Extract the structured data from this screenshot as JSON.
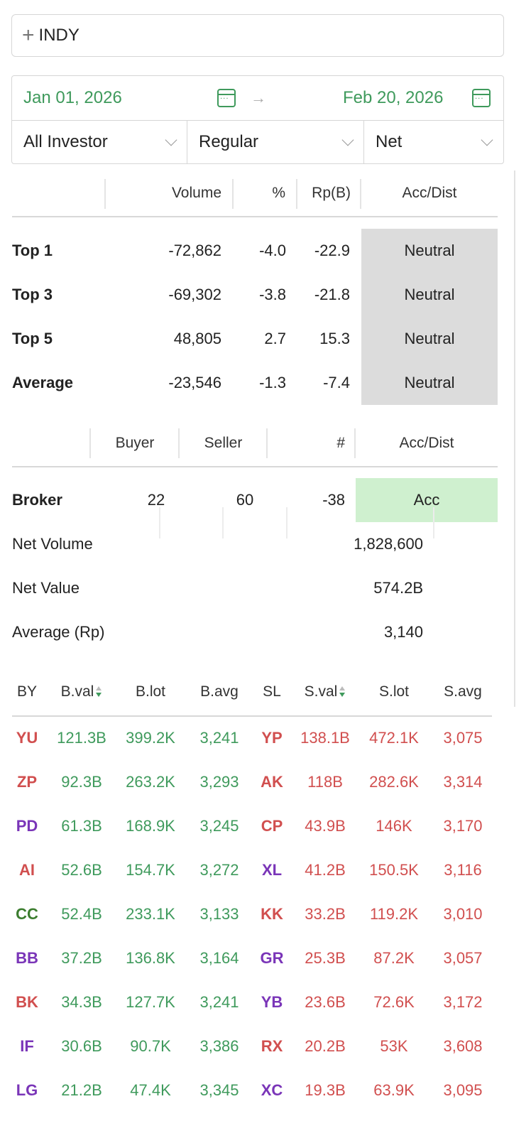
{
  "search": {
    "value": "INDY"
  },
  "dates": {
    "start": "Jan 01, 2026",
    "end": "Feb 20, 2026"
  },
  "filters": {
    "investor": "All Investor",
    "market": "Regular",
    "mode": "Net"
  },
  "summary": {
    "headers": [
      "Volume",
      "%",
      "Rp(B)",
      "Acc/Dist"
    ],
    "rows": [
      {
        "label": "Top 1",
        "volume": "-72,862",
        "pct": "-4.0",
        "rp": "-22.9",
        "status": "Neutral"
      },
      {
        "label": "Top 3",
        "volume": "-69,302",
        "pct": "-3.8",
        "rp": "-21.8",
        "status": "Neutral"
      },
      {
        "label": "Top 5",
        "volume": "48,805",
        "pct": "2.7",
        "rp": "15.3",
        "status": "Neutral"
      },
      {
        "label": "Average",
        "volume": "-23,546",
        "pct": "-1.3",
        "rp": "-7.4",
        "status": "Neutral"
      }
    ]
  },
  "broker": {
    "headers": [
      "Buyer",
      "Seller",
      "#",
      "Acc/Dist"
    ],
    "label": "Broker",
    "buyer": "22",
    "seller": "60",
    "count": "-38",
    "status": "Acc",
    "net_volume_label": "Net Volume",
    "net_volume": "1,828,600",
    "net_value_label": "Net Value",
    "net_value": "574.2B",
    "average_label": "Average (Rp)",
    "average": "3,140"
  },
  "colors": {
    "green": "#3f9a5c",
    "red": "#d14f4f",
    "purple": "#7a35b8",
    "darkgreen": "#3c7d2f",
    "neutral_bg": "#dcdcdc",
    "acc_bg": "#cff0cf"
  },
  "table": {
    "headers": {
      "by": "BY",
      "bval": "B.val",
      "blot": "B.lot",
      "bavg": "B.avg",
      "sl": "SL",
      "sval": "S.val",
      "slot": "S.lot",
      "savg": "S.avg"
    },
    "rows": [
      {
        "by": "YU",
        "by_color": "#d14f4f",
        "bval": "121.3B",
        "blot": "399.2K",
        "bavg": "3,241",
        "sl": "YP",
        "sl_color": "#d14f4f",
        "sval": "138.1B",
        "slot": "472.1K",
        "savg": "3,075"
      },
      {
        "by": "ZP",
        "by_color": "#d14f4f",
        "bval": "92.3B",
        "blot": "263.2K",
        "bavg": "3,293",
        "sl": "AK",
        "sl_color": "#d14f4f",
        "sval": "118B",
        "slot": "282.6K",
        "savg": "3,314"
      },
      {
        "by": "PD",
        "by_color": "#7a35b8",
        "bval": "61.3B",
        "blot": "168.9K",
        "bavg": "3,245",
        "sl": "CP",
        "sl_color": "#d14f4f",
        "sval": "43.9B",
        "slot": "146K",
        "savg": "3,170"
      },
      {
        "by": "AI",
        "by_color": "#d14f4f",
        "bval": "52.6B",
        "blot": "154.7K",
        "bavg": "3,272",
        "sl": "XL",
        "sl_color": "#7a35b8",
        "sval": "41.2B",
        "slot": "150.5K",
        "savg": "3,116"
      },
      {
        "by": "CC",
        "by_color": "#3c7d2f",
        "bval": "52.4B",
        "blot": "233.1K",
        "bavg": "3,133",
        "sl": "KK",
        "sl_color": "#d14f4f",
        "sval": "33.2B",
        "slot": "119.2K",
        "savg": "3,010"
      },
      {
        "by": "BB",
        "by_color": "#7a35b8",
        "bval": "37.2B",
        "blot": "136.8K",
        "bavg": "3,164",
        "sl": "GR",
        "sl_color": "#7a35b8",
        "sval": "25.3B",
        "slot": "87.2K",
        "savg": "3,057"
      },
      {
        "by": "BK",
        "by_color": "#d14f4f",
        "bval": "34.3B",
        "blot": "127.7K",
        "bavg": "3,241",
        "sl": "YB",
        "sl_color": "#7a35b8",
        "sval": "23.6B",
        "slot": "72.6K",
        "savg": "3,172"
      },
      {
        "by": "IF",
        "by_color": "#7a35b8",
        "bval": "30.6B",
        "blot": "90.7K",
        "bavg": "3,386",
        "sl": "RX",
        "sl_color": "#d14f4f",
        "sval": "20.2B",
        "slot": "53K",
        "savg": "3,608"
      },
      {
        "by": "LG",
        "by_color": "#7a35b8",
        "bval": "21.2B",
        "blot": "47.4K",
        "bavg": "3,345",
        "sl": "XC",
        "sl_color": "#7a35b8",
        "sval": "19.3B",
        "slot": "63.9K",
        "savg": "3,095"
      }
    ]
  }
}
